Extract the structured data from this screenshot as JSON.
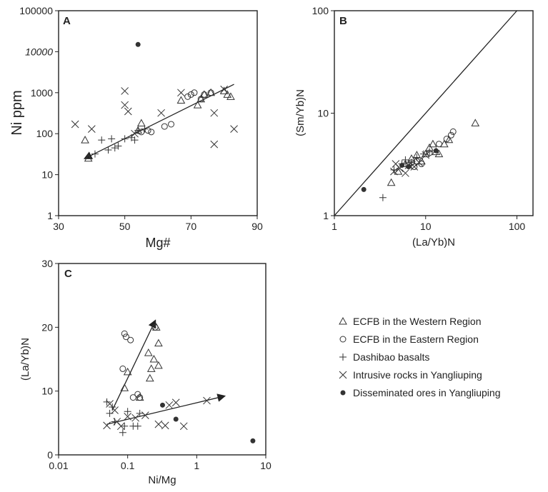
{
  "chart_data": [
    {
      "id": "A",
      "type": "scatter",
      "panel_label": "A",
      "xlabel": "Mg#",
      "ylabel": "Ni ppm",
      "xlim": [
        30,
        90
      ],
      "ylim": [
        1,
        100000
      ],
      "yscale": "log",
      "xticks": [
        "30",
        "50",
        "70",
        "90"
      ],
      "yticks": [
        "1",
        "10",
        "100",
        "1000",
        "10000",
        "100000"
      ],
      "series": [
        {
          "name": "ECFB in the Western Region",
          "marker": "triangle",
          "x": [
            38,
            39,
            55,
            54,
            67,
            72,
            73,
            74,
            76,
            80,
            81,
            82
          ],
          "y": [
            70,
            25,
            180,
            120,
            650,
            500,
            700,
            900,
            1000,
            1100,
            900,
            800
          ]
        },
        {
          "name": "ECFB in the Eastern Region",
          "marker": "circle",
          "x": [
            55,
            57,
            58,
            62,
            64,
            69,
            70,
            71,
            73,
            74,
            76
          ],
          "y": [
            110,
            120,
            110,
            150,
            170,
            800,
            900,
            1000,
            700,
            900,
            1000
          ]
        },
        {
          "name": "Dashibao basalts",
          "marker": "plus",
          "x": [
            41,
            43,
            45,
            46,
            47,
            48,
            50,
            52,
            53,
            54,
            56
          ],
          "y": [
            32,
            70,
            40,
            75,
            45,
            50,
            75,
            80,
            70,
            120,
            130
          ]
        },
        {
          "name": "Intrusive rocks in Yangliuping",
          "marker": "x",
          "x": [
            35,
            40,
            50,
            50,
            51,
            53,
            61,
            67,
            77,
            77,
            80,
            83
          ],
          "y": [
            170,
            130,
            1100,
            500,
            350,
            100,
            320,
            1000,
            320,
            55,
            1200,
            130
          ]
        },
        {
          "name": "Disseminated ores in Yangliuping",
          "marker": "dot",
          "x": [
            54
          ],
          "y": [
            15000
          ]
        }
      ],
      "trendlines": [
        {
          "x": [
            38,
            83
          ],
          "y": [
            25,
            1600
          ],
          "arrow": "start"
        }
      ]
    },
    {
      "id": "B",
      "type": "scatter",
      "panel_label": "B",
      "xlabel": "(La/Yb)N",
      "ylabel": "(Sm/Yb)N",
      "xlim": [
        1,
        150
      ],
      "ylim": [
        1,
        100
      ],
      "xscale": "log",
      "yscale": "log",
      "xticks": [
        "1",
        "10",
        "100"
      ],
      "yticks": [
        "1",
        "10",
        "100"
      ],
      "series": [
        {
          "name": "ECFB in the Western Region",
          "marker": "triangle",
          "x": [
            4.2,
            5,
            6,
            7,
            8,
            9,
            10,
            11,
            12,
            13,
            14,
            16,
            18,
            35
          ],
          "y": [
            2.1,
            2.7,
            3.2,
            3.6,
            3.9,
            3.4,
            4.0,
            4.6,
            5.0,
            4.2,
            4.0,
            5.0,
            5.5,
            8.0
          ]
        },
        {
          "name": "ECFB in the Eastern Region",
          "marker": "circle",
          "x": [
            6.5,
            7,
            7.5,
            8,
            9,
            11,
            14,
            17,
            19,
            20
          ],
          "y": [
            3.1,
            3.3,
            3.0,
            3.4,
            3.2,
            4.1,
            5.0,
            5.6,
            6.1,
            6.6
          ]
        },
        {
          "name": "Dashibao basalts",
          "marker": "plus",
          "x": [
            3.4,
            4.5,
            5.5,
            6,
            7,
            8,
            9.5,
            11
          ],
          "y": [
            1.5,
            2.8,
            3.2,
            3.5,
            3.3,
            3.7,
            4.0,
            4.2
          ]
        },
        {
          "name": "Intrusive rocks in Yangliuping",
          "marker": "x",
          "x": [
            4.5,
            4.7,
            5.2,
            6,
            6.5,
            7.5,
            8.5,
            10
          ],
          "y": [
            2.7,
            3.2,
            2.9,
            2.6,
            3.1,
            3.0,
            3.3,
            3.9
          ]
        },
        {
          "name": "Disseminated ores in Yangliuping",
          "marker": "dot",
          "x": [
            2.1,
            5.5,
            6.5,
            13
          ],
          "y": [
            1.8,
            3.1,
            3.0,
            4.3
          ]
        }
      ],
      "reference_line": "1:1"
    },
    {
      "id": "C",
      "type": "scatter",
      "panel_label": "C",
      "xlabel": "Ni/Mg",
      "ylabel": "(La/Yb)N",
      "xlim": [
        0.01,
        10
      ],
      "ylim": [
        0,
        30
      ],
      "xscale": "log",
      "xticks": [
        "0.01",
        "0.1",
        "1",
        "10"
      ],
      "yticks": [
        "0",
        "10",
        "20",
        "30"
      ],
      "series": [
        {
          "name": "ECFB in the Western Region",
          "marker": "triangle",
          "x": [
            0.09,
            0.1,
            0.15,
            0.2,
            0.21,
            0.22,
            0.24,
            0.26,
            0.28,
            0.28
          ],
          "y": [
            10.5,
            13,
            9,
            16,
            12,
            13.5,
            15,
            20,
            17.5,
            14
          ]
        },
        {
          "name": "ECFB in the Eastern Region",
          "marker": "circle",
          "x": [
            0.085,
            0.09,
            0.095,
            0.11,
            0.12,
            0.14,
            0.15,
            0.25
          ],
          "y": [
            13.5,
            19,
            18.5,
            18,
            9,
            9.5,
            9,
            20
          ]
        },
        {
          "name": "Dashibao basalts",
          "marker": "plus",
          "x": [
            0.05,
            0.055,
            0.06,
            0.065,
            0.085,
            0.09,
            0.1,
            0.12,
            0.14,
            0.15
          ],
          "y": [
            8.3,
            6.5,
            7.5,
            5.2,
            3.5,
            4.5,
            6.8,
            4.5,
            4.5,
            6.5
          ]
        },
        {
          "name": "Intrusive rocks in Yangliuping",
          "marker": "x",
          "x": [
            0.05,
            0.055,
            0.065,
            0.07,
            0.08,
            0.1,
            0.13,
            0.18,
            0.28,
            0.35,
            0.4,
            0.5,
            0.65,
            1.4
          ],
          "y": [
            4.6,
            8,
            7,
            5.2,
            4.5,
            6,
            5.8,
            6.2,
            4.8,
            4.6,
            7.8,
            8.2,
            4.5,
            8.5
          ]
        },
        {
          "name": "Disseminated ores in Yangliuping",
          "marker": "dot",
          "x": [
            0.32,
            0.5,
            6.5
          ],
          "y": [
            7.8,
            5.6,
            2.2
          ]
        }
      ],
      "trendlines": [
        {
          "x": [
            0.06,
            0.25
          ],
          "y": [
            7,
            21
          ],
          "arrow": "end"
        },
        {
          "x": [
            0.05,
            2.5
          ],
          "y": [
            4.8,
            9.2
          ],
          "arrow": "end"
        }
      ]
    }
  ],
  "legend": {
    "position": "lower-right",
    "entries": [
      {
        "marker": "triangle",
        "label": "ECFB in the Western Region"
      },
      {
        "marker": "circle",
        "label": "ECFB in the Eastern Region"
      },
      {
        "marker": "plus",
        "label": "Dashibao basalts"
      },
      {
        "marker": "x",
        "label": "Intrusive rocks in Yangliuping"
      },
      {
        "marker": "dot",
        "label": "Disseminated ores in Yangliuping"
      }
    ]
  },
  "colors": {
    "ink": "#222222",
    "marker": "#333333",
    "background": "#ffffff"
  }
}
